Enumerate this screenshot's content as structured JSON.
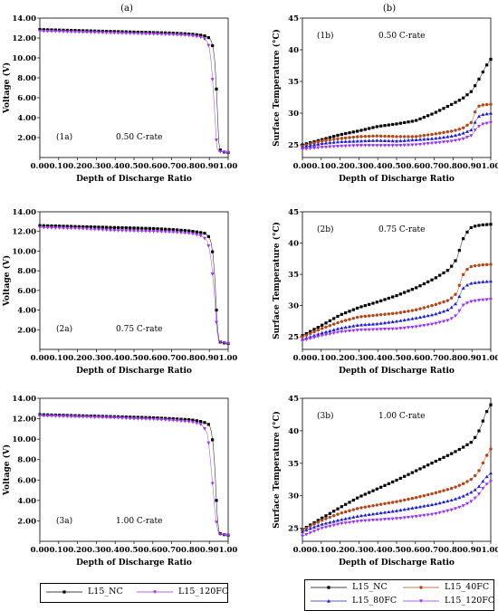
{
  "column_headers": [
    "(a)",
    "(b)"
  ],
  "colors": {
    "L15_NC": "#000000",
    "L15_40FC": "#b5451b",
    "L15_80FC": "#1f1fcc",
    "L15_120FC": "#9933ee"
  },
  "chart_data": [
    {
      "id": "1a",
      "type": "line",
      "panel_label": "(1a)",
      "rate_label": "0.50 C-rate",
      "xlabel": "Depth of Discharge Ratio",
      "ylabel": "Voltage (V)",
      "xlim": [
        0,
        1
      ],
      "ylim": [
        0,
        14
      ],
      "xticks": [
        "0.00",
        "0.10",
        "0.20",
        "0.30",
        "0.40",
        "0.50",
        "0.60",
        "0.70",
        "0.80",
        "0.90",
        "1.00"
      ],
      "yticks": [
        "2.00",
        "4.00",
        "6.00",
        "8.00",
        "10.00",
        "12.00",
        "14.00"
      ],
      "series": [
        {
          "name": "L15_NC",
          "x": [
            0,
            0.1,
            0.2,
            0.3,
            0.4,
            0.5,
            0.6,
            0.7,
            0.8,
            0.85,
            0.88,
            0.9,
            0.91,
            0.92,
            0.93,
            0.94,
            0.95,
            0.96,
            1.0
          ],
          "y": [
            12.85,
            12.8,
            12.75,
            12.7,
            12.65,
            12.6,
            12.55,
            12.5,
            12.4,
            12.3,
            12.2,
            12.0,
            11.7,
            11.0,
            9.5,
            6.0,
            1.5,
            0.6,
            0.5
          ]
        },
        {
          "name": "L15_120FC",
          "x": [
            0,
            0.1,
            0.2,
            0.3,
            0.4,
            0.5,
            0.6,
            0.7,
            0.8,
            0.85,
            0.87,
            0.89,
            0.9,
            0.91,
            0.92,
            0.93,
            0.94,
            0.95,
            1.0
          ],
          "y": [
            12.7,
            12.65,
            12.6,
            12.55,
            12.5,
            12.45,
            12.4,
            12.35,
            12.25,
            12.1,
            12.0,
            11.6,
            11.0,
            9.5,
            7.0,
            4.0,
            1.0,
            0.6,
            0.5
          ]
        }
      ]
    },
    {
      "id": "1b",
      "type": "line",
      "panel_label": "(1b)",
      "rate_label": "0.50 C-rate",
      "xlabel": "Depth of Discharge Ratio",
      "ylabel": "Surface Temperature (°C)",
      "xlim": [
        0,
        1
      ],
      "ylim": [
        23,
        45
      ],
      "xticks": [
        "0.00",
        "0.10",
        "0.20",
        "0.30",
        "0.40",
        "0.50",
        "0.60",
        "0.70",
        "0.80",
        "0.90",
        "1.00"
      ],
      "yticks": [
        "25",
        "30",
        "35",
        "40",
        "45"
      ],
      "series": [
        {
          "name": "L15_NC",
          "x": [
            0,
            0.1,
            0.2,
            0.3,
            0.4,
            0.5,
            0.6,
            0.7,
            0.8,
            0.85,
            0.9,
            0.93,
            0.95,
            0.97,
            1.0
          ],
          "y": [
            25,
            25.8,
            26.6,
            27.2,
            27.9,
            28.3,
            28.8,
            30.0,
            31.5,
            32.3,
            33.5,
            35.0,
            36.0,
            37.2,
            38.5
          ]
        },
        {
          "name": "L15_40FC",
          "x": [
            0,
            0.1,
            0.2,
            0.3,
            0.4,
            0.5,
            0.6,
            0.7,
            0.8,
            0.85,
            0.9,
            0.92,
            0.94,
            0.96,
            1.0
          ],
          "y": [
            24.8,
            25.6,
            26.0,
            26.3,
            26.4,
            26.3,
            26.3,
            26.7,
            27.2,
            27.6,
            28.6,
            30.5,
            31.2,
            31.3,
            31.4
          ]
        },
        {
          "name": "L15_80FC",
          "x": [
            0,
            0.1,
            0.2,
            0.3,
            0.4,
            0.5,
            0.6,
            0.7,
            0.8,
            0.85,
            0.9,
            0.92,
            0.94,
            0.96,
            1.0
          ],
          "y": [
            24.6,
            25.2,
            25.5,
            25.6,
            25.7,
            25.6,
            25.8,
            26.0,
            26.4,
            26.8,
            27.4,
            28.8,
            29.6,
            29.8,
            30.0
          ]
        },
        {
          "name": "L15_120FC",
          "x": [
            0,
            0.1,
            0.2,
            0.3,
            0.4,
            0.5,
            0.6,
            0.7,
            0.8,
            0.85,
            0.9,
            0.92,
            0.94,
            0.96,
            1.0
          ],
          "y": [
            24.3,
            24.6,
            24.8,
            24.9,
            24.9,
            24.9,
            25.0,
            25.3,
            25.6,
            25.9,
            26.5,
            27.5,
            28.0,
            28.3,
            28.5
          ]
        }
      ]
    },
    {
      "id": "2a",
      "type": "line",
      "panel_label": "(2a)",
      "rate_label": "0.75 C-rate",
      "xlabel": "Depth of Discharge Ratio",
      "ylabel": "Voltage (V)",
      "xlim": [
        0,
        1
      ],
      "ylim": [
        0,
        14
      ],
      "xticks": [
        "0.00",
        "0.10",
        "0.20",
        "0.30",
        "0.40",
        "0.50",
        "0.60",
        "0.70",
        "0.80",
        "0.90",
        "1.00"
      ],
      "yticks": [
        "2.00",
        "4.00",
        "6.00",
        "8.00",
        "10.00",
        "12.00",
        "14.00"
      ],
      "series": [
        {
          "name": "L15_NC",
          "x": [
            0,
            0.1,
            0.2,
            0.3,
            0.4,
            0.5,
            0.6,
            0.7,
            0.8,
            0.85,
            0.88,
            0.9,
            0.91,
            0.92,
            0.93,
            0.94,
            0.95,
            0.96,
            1.0
          ],
          "y": [
            12.6,
            12.55,
            12.5,
            12.45,
            12.4,
            12.35,
            12.3,
            12.2,
            12.05,
            11.9,
            11.8,
            11.4,
            10.8,
            9.5,
            7.0,
            3.0,
            1.0,
            0.7,
            0.6
          ]
        },
        {
          "name": "L15_120FC",
          "x": [
            0,
            0.1,
            0.2,
            0.3,
            0.4,
            0.5,
            0.6,
            0.7,
            0.8,
            0.85,
            0.87,
            0.89,
            0.9,
            0.91,
            0.92,
            0.93,
            0.94,
            0.95,
            1.0
          ],
          "y": [
            12.4,
            12.35,
            12.3,
            12.2,
            12.1,
            12.05,
            12.0,
            11.95,
            11.8,
            11.6,
            11.4,
            11.0,
            10.2,
            9.0,
            7.0,
            5.0,
            2.0,
            0.8,
            0.6
          ]
        }
      ]
    },
    {
      "id": "2b",
      "type": "line",
      "panel_label": "(2b)",
      "rate_label": "0.75 C-rate",
      "xlabel": "Depth of Discharge Ratio",
      "ylabel": "Surface Temperature (°C)",
      "xlim": [
        0,
        1
      ],
      "ylim": [
        23,
        45
      ],
      "xticks": [
        "0.00",
        "0.10",
        "0.20",
        "0.30",
        "0.40",
        "0.50",
        "0.60",
        "0.70",
        "0.80",
        "0.90",
        "1.00"
      ],
      "yticks": [
        "25",
        "30",
        "35",
        "40",
        "45"
      ],
      "series": [
        {
          "name": "L15_NC",
          "x": [
            0,
            0.1,
            0.2,
            0.3,
            0.4,
            0.5,
            0.6,
            0.7,
            0.78,
            0.82,
            0.85,
            0.88,
            0.9,
            0.95,
            1.0
          ],
          "y": [
            25.2,
            26.8,
            28.5,
            29.7,
            30.6,
            31.6,
            32.8,
            34.3,
            35.8,
            37.5,
            40.5,
            42.0,
            42.6,
            42.9,
            43.0
          ]
        },
        {
          "name": "L15_40FC",
          "x": [
            0,
            0.1,
            0.2,
            0.3,
            0.4,
            0.5,
            0.6,
            0.7,
            0.78,
            0.82,
            0.85,
            0.88,
            0.9,
            0.95,
            1.0
          ],
          "y": [
            25.0,
            26.3,
            27.4,
            28.2,
            28.5,
            28.8,
            29.3,
            30.1,
            30.9,
            32.0,
            34.8,
            36.0,
            36.3,
            36.5,
            36.6
          ]
        },
        {
          "name": "L15_80FC",
          "x": [
            0,
            0.1,
            0.2,
            0.3,
            0.4,
            0.5,
            0.6,
            0.7,
            0.78,
            0.82,
            0.85,
            0.88,
            0.9,
            0.95,
            1.0
          ],
          "y": [
            24.6,
            25.6,
            26.4,
            26.9,
            27.1,
            27.5,
            28.0,
            28.6,
            29.4,
            30.5,
            32.7,
            33.4,
            33.6,
            33.8,
            33.9
          ]
        },
        {
          "name": "L15_120FC",
          "x": [
            0,
            0.1,
            0.2,
            0.3,
            0.4,
            0.5,
            0.6,
            0.7,
            0.78,
            0.82,
            0.85,
            0.88,
            0.9,
            0.95,
            1.0
          ],
          "y": [
            24.4,
            25.2,
            25.8,
            26.1,
            26.2,
            26.3,
            26.6,
            27.1,
            27.7,
            28.5,
            30.0,
            30.5,
            30.7,
            30.9,
            31.0
          ]
        }
      ]
    },
    {
      "id": "3a",
      "type": "line",
      "panel_label": "(3a)",
      "rate_label": "1.00 C-rate",
      "xlabel": "Depth of Discharge Ratio",
      "ylabel": "Voltage (V)",
      "xlim": [
        0,
        1
      ],
      "ylim": [
        0,
        14
      ],
      "xticks": [
        "0.00",
        "0.10",
        "0.20",
        "0.30",
        "0.40",
        "0.50",
        "0.60",
        "0.70",
        "0.80",
        "0.90",
        "1.00"
      ],
      "yticks": [
        "2.00",
        "4.00",
        "6.00",
        "8.00",
        "10.00",
        "12.00",
        "14.00"
      ],
      "series": [
        {
          "name": "L15_NC",
          "x": [
            0,
            0.1,
            0.2,
            0.3,
            0.4,
            0.5,
            0.6,
            0.7,
            0.8,
            0.85,
            0.88,
            0.9,
            0.91,
            0.92,
            0.93,
            0.94,
            0.95,
            0.96,
            1.0
          ],
          "y": [
            12.4,
            12.35,
            12.3,
            12.25,
            12.2,
            12.15,
            12.1,
            12.0,
            11.9,
            11.75,
            11.6,
            11.4,
            10.8,
            9.5,
            7.0,
            3.0,
            1.0,
            0.7,
            0.6
          ]
        },
        {
          "name": "L15_120FC",
          "x": [
            0,
            0.1,
            0.2,
            0.3,
            0.4,
            0.5,
            0.6,
            0.7,
            0.8,
            0.85,
            0.87,
            0.89,
            0.9,
            0.91,
            0.92,
            0.93,
            0.94,
            0.95,
            1.0
          ],
          "y": [
            12.3,
            12.25,
            12.2,
            12.15,
            12.1,
            12.0,
            11.95,
            11.85,
            11.7,
            11.5,
            11.2,
            10.5,
            9.0,
            7.0,
            5.0,
            3.0,
            1.5,
            0.7,
            0.6
          ]
        }
      ]
    },
    {
      "id": "3b",
      "type": "line",
      "panel_label": "(3b)",
      "rate_label": "1.00 C-rate",
      "xlabel": "Depth of Discharge Ratio",
      "ylabel": "Surface Temperature (°C)",
      "xlim": [
        0,
        1
      ],
      "ylim": [
        23,
        45
      ],
      "xticks": [
        "0.00",
        "0.10",
        "0.20",
        "0.30",
        "0.40",
        "0.50",
        "0.60",
        "0.70",
        "0.80",
        "0.90",
        "1.00"
      ],
      "yticks": [
        "25",
        "30",
        "35",
        "40",
        "45"
      ],
      "series": [
        {
          "name": "L15_NC",
          "x": [
            0,
            0.1,
            0.2,
            0.3,
            0.4,
            0.5,
            0.6,
            0.7,
            0.8,
            0.85,
            0.9,
            0.93,
            0.95,
            0.97,
            1.0
          ],
          "y": [
            24.8,
            26.5,
            28.2,
            29.8,
            31.1,
            32.4,
            33.8,
            35.2,
            36.6,
            37.4,
            38.3,
            39.5,
            40.8,
            42.5,
            44.0
          ]
        },
        {
          "name": "L15_40FC",
          "x": [
            0,
            0.1,
            0.2,
            0.3,
            0.4,
            0.5,
            0.6,
            0.7,
            0.8,
            0.85,
            0.9,
            0.93,
            0.95,
            0.97,
            1.0
          ],
          "y": [
            24.7,
            26.2,
            27.3,
            28.1,
            28.6,
            29.1,
            29.7,
            30.4,
            31.2,
            31.8,
            32.6,
            33.5,
            34.5,
            35.8,
            37.2
          ]
        },
        {
          "name": "L15_80FC",
          "x": [
            0,
            0.1,
            0.2,
            0.3,
            0.4,
            0.5,
            0.6,
            0.7,
            0.8,
            0.85,
            0.9,
            0.93,
            0.95,
            0.97,
            1.0
          ],
          "y": [
            24.5,
            25.6,
            26.3,
            26.9,
            27.3,
            27.7,
            28.2,
            28.7,
            29.4,
            29.9,
            30.6,
            31.2,
            31.9,
            32.7,
            33.5
          ]
        },
        {
          "name": "L15_120FC",
          "x": [
            0,
            0.1,
            0.2,
            0.3,
            0.4,
            0.5,
            0.6,
            0.7,
            0.8,
            0.85,
            0.9,
            0.93,
            0.95,
            0.97,
            1.0
          ],
          "y": [
            23.8,
            25.0,
            25.7,
            26.1,
            26.3,
            26.5,
            26.8,
            27.2,
            27.9,
            28.4,
            29.2,
            30.0,
            30.8,
            31.6,
            32.2
          ]
        }
      ]
    }
  ],
  "legends": {
    "left": [
      "L15_NC",
      "L15_120FC"
    ],
    "right": [
      "L15_NC",
      "L15_40FC",
      "L15_80FC",
      "L15_120FC"
    ]
  }
}
